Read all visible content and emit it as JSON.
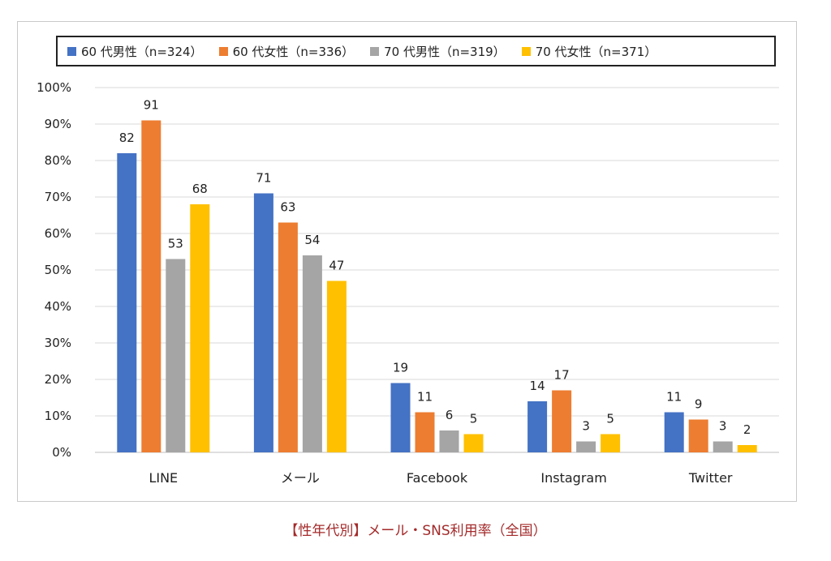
{
  "chart_data": {
    "type": "bar",
    "categories": [
      "LINE",
      "メール",
      "Facebook",
      "Instagram",
      "Twitter"
    ],
    "series": [
      {
        "name": "60 代男性（n=324）",
        "color": "#4472c4",
        "values": [
          82,
          71,
          19,
          14,
          11
        ]
      },
      {
        "name": "60 代女性（n=336）",
        "color": "#ed7d31",
        "values": [
          91,
          63,
          11,
          17,
          9
        ]
      },
      {
        "name": "70 代男性（n=319）",
        "color": "#a5a5a5",
        "values": [
          53,
          54,
          6,
          3,
          3
        ]
      },
      {
        "name": "70 代女性（n=371）",
        "color": "#ffc000",
        "values": [
          68,
          47,
          5,
          5,
          2
        ]
      }
    ],
    "ylim": [
      0,
      100
    ],
    "yticks": [
      "0%",
      "10%",
      "20%",
      "30%",
      "40%",
      "50%",
      "60%",
      "70%",
      "80%",
      "90%",
      "100%"
    ],
    "grid": true,
    "legend": "top",
    "title": "",
    "xlabel": "",
    "ylabel": ""
  },
  "caption": "【性年代別】メール・SNS利用率（全国）"
}
